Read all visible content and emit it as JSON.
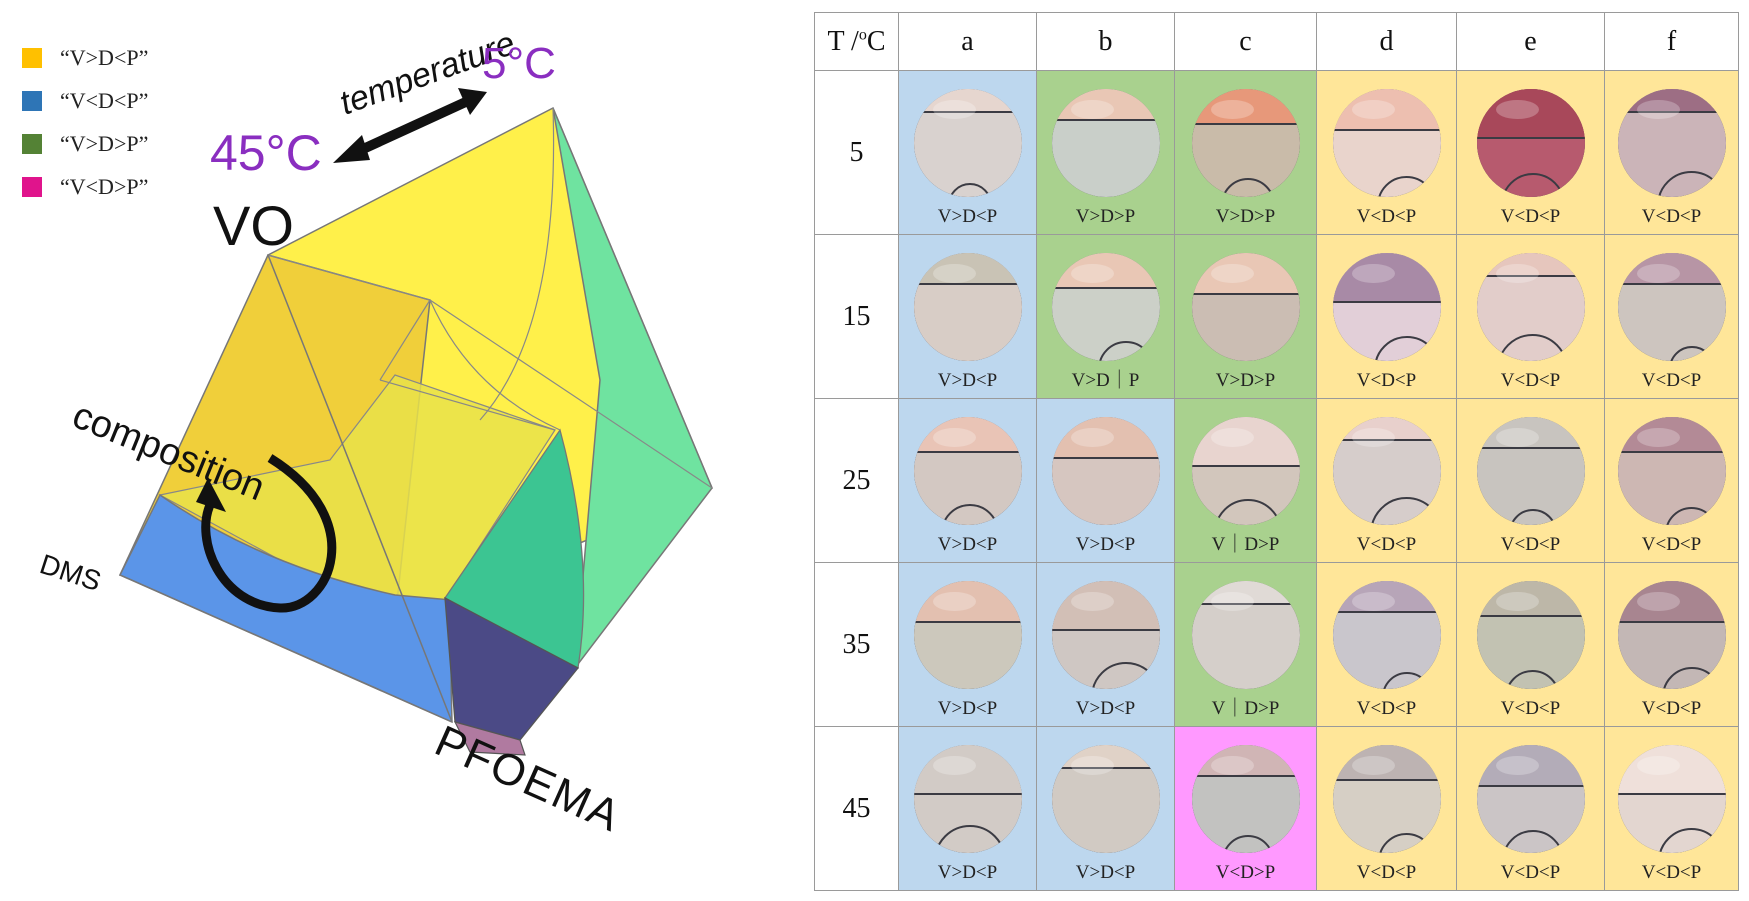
{
  "legend": [
    {
      "label": "“V>D<P”",
      "color": "#ffc000"
    },
    {
      "label": "“V<D<P”",
      "color": "#2e75b6"
    },
    {
      "label": "“V>D>P”",
      "color": "#548235"
    },
    {
      "label": "“V<D>P”",
      "color": "#e0148c"
    }
  ],
  "diagram": {
    "vertex_top": "VO",
    "vertex_left": "DMS",
    "vertex_bottom": "PFOEMA",
    "temperature_label": "temperature",
    "temp_high": "45°C",
    "temp_low": "5°C",
    "composition_label": "composition",
    "colors": {
      "yellow": "#fff04a",
      "amber": "#f0cf3a",
      "blue": "#5b95e8",
      "green": "#6fe3a0",
      "teal": "#3cc592",
      "indigo": "#4b4a86",
      "purple": "#b07aa0",
      "arrow": "#111111",
      "temp_text": "#8a2ec0"
    }
  },
  "table": {
    "corner_label_prefix": "T /",
    "corner_label_sup": "o",
    "corner_label_suffix": "C",
    "columns": [
      "a",
      "b",
      "c",
      "d",
      "e",
      "f"
    ],
    "zone_colors": {
      "blue": "#bdd7ee",
      "green": "#a9d18e",
      "pink": "#ff99ff",
      "yellow": "#ffe699"
    },
    "rows": [
      {
        "temperature": "5",
        "cells": [
          {
            "label": "V>D<P",
            "zone": "blue"
          },
          {
            "label": "V>D>P",
            "zone": "green"
          },
          {
            "label": "V>D>P",
            "zone": "green"
          },
          {
            "label": "V<D<P",
            "zone": "yellow"
          },
          {
            "label": "V<D<P",
            "zone": "yellow"
          },
          {
            "label": "V<D<P",
            "zone": "yellow"
          }
        ]
      },
      {
        "temperature": "15",
        "cells": [
          {
            "label": "V>D<P",
            "zone": "blue"
          },
          {
            "label": "V>D｜P",
            "zone": "green"
          },
          {
            "label": "V>D>P",
            "zone": "green"
          },
          {
            "label": "V<D<P",
            "zone": "yellow"
          },
          {
            "label": "V<D<P",
            "zone": "yellow"
          },
          {
            "label": "V<D<P",
            "zone": "yellow"
          }
        ]
      },
      {
        "temperature": "25",
        "cells": [
          {
            "label": "V>D<P",
            "zone": "blue"
          },
          {
            "label": "V>D<P",
            "zone": "blue"
          },
          {
            "label": "V｜D>P",
            "zone": "green"
          },
          {
            "label": "V<D<P",
            "zone": "yellow"
          },
          {
            "label": "V<D<P",
            "zone": "yellow"
          },
          {
            "label": "V<D<P",
            "zone": "yellow"
          }
        ]
      },
      {
        "temperature": "35",
        "cells": [
          {
            "label": "V>D<P",
            "zone": "blue"
          },
          {
            "label": "V>D<P",
            "zone": "blue"
          },
          {
            "label": "V｜D>P",
            "zone": "green"
          },
          {
            "label": "V<D<P",
            "zone": "yellow"
          },
          {
            "label": "V<D<P",
            "zone": "yellow"
          },
          {
            "label": "V<D<P",
            "zone": "yellow"
          }
        ]
      },
      {
        "temperature": "45",
        "cells": [
          {
            "label": "V>D<P",
            "zone": "blue"
          },
          {
            "label": "V>D<P",
            "zone": "blue"
          },
          {
            "label": "V<D>P",
            "zone": "pink"
          },
          {
            "label": "V<D<P",
            "zone": "yellow"
          },
          {
            "label": "V<D<P",
            "zone": "yellow"
          },
          {
            "label": "V<D<P",
            "zone": "yellow"
          }
        ]
      }
    ]
  }
}
